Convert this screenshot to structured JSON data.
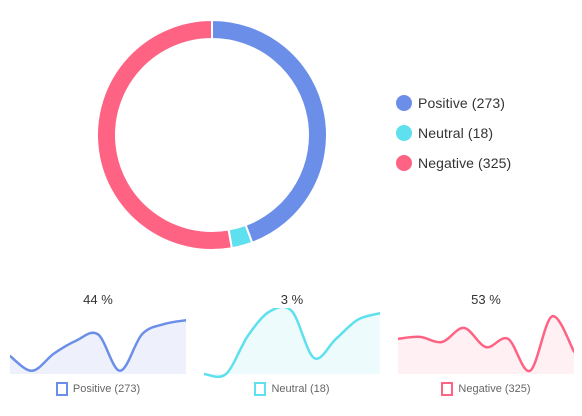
{
  "chart_data": [
    {
      "type": "pie",
      "variant": "donut",
      "categories": [
        "Positive",
        "Neutral",
        "Negative"
      ],
      "values": [
        273,
        18,
        325
      ],
      "colors": [
        "#6b8fe8",
        "#5ee0ee",
        "#ff6384"
      ],
      "legend": {
        "placement": "right",
        "entries": [
          "Positive (273)",
          "Neutral (18)",
          "Negative (325)"
        ]
      }
    },
    {
      "type": "area",
      "title": "44 %",
      "legend": "Positive (273)",
      "color": "#6b8fe8",
      "fill": "#eef1fb",
      "x": [
        0,
        1,
        2,
        3,
        4,
        5,
        6,
        7,
        8
      ],
      "values": [
        0.28,
        0.05,
        0.32,
        0.52,
        0.62,
        0.05,
        0.62,
        0.78,
        0.84
      ],
      "ylim": [
        0,
        1
      ]
    },
    {
      "type": "area",
      "title": "3 %",
      "legend": "Neutral (18)",
      "color": "#5ee0ee",
      "fill": "#eefbfd",
      "x": [
        0,
        1,
        2,
        3,
        4,
        5,
        6,
        7,
        8
      ],
      "values": [
        0.0,
        0.0,
        0.6,
        0.98,
        0.98,
        0.25,
        0.55,
        0.85,
        0.95
      ],
      "ylim": [
        0,
        1
      ]
    },
    {
      "type": "area",
      "title": "53 %",
      "legend": "Negative (325)",
      "color": "#ff6384",
      "fill": "#fff0f3",
      "x": [
        0,
        1,
        2,
        3,
        4,
        5,
        6,
        7,
        8
      ],
      "values": [
        0.55,
        0.58,
        0.5,
        0.72,
        0.42,
        0.55,
        0.05,
        0.9,
        0.35
      ],
      "ylim": [
        0,
        1
      ]
    }
  ]
}
